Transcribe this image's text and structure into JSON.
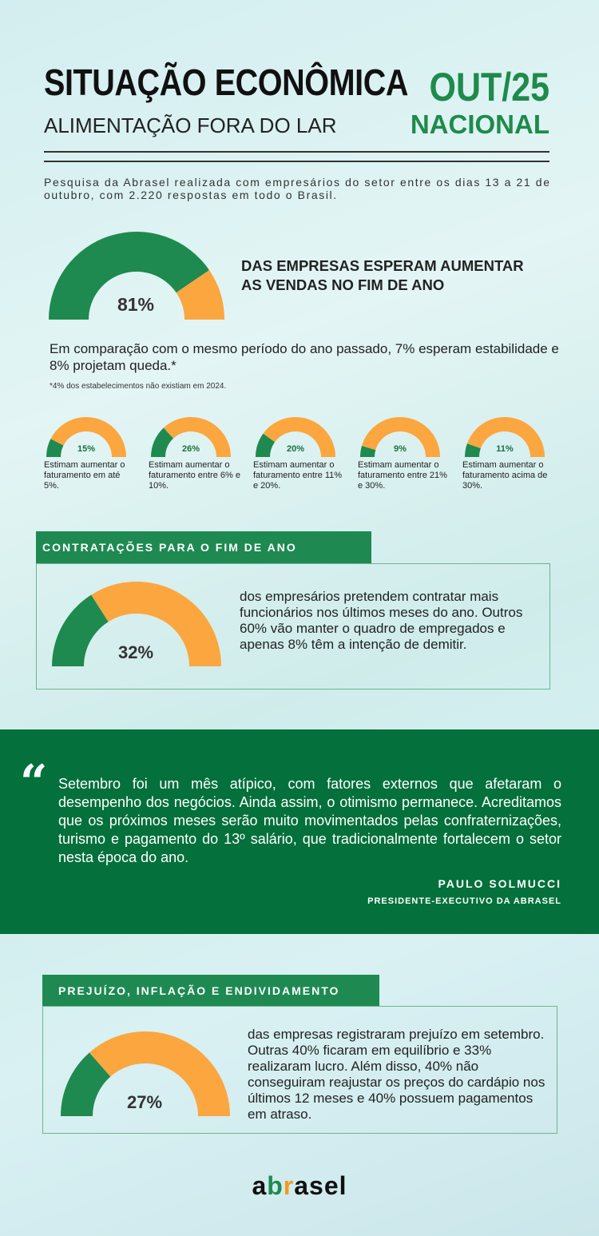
{
  "header": {
    "title": "SITUAÇÃO ECONÔMICA",
    "subtitle": "ALIMENTAÇÃO FORA DO LAR",
    "period": "OUT/25",
    "scope": "NACIONAL"
  },
  "intro": "Pesquisa da Abrasel realizada com empresários do setor entre os dias 13 a 21 de outubro, com 2.220 respostas em todo o Brasil.",
  "colors": {
    "green": "#1e8a4f",
    "orange": "#fba63f",
    "dark_green": "#04703b"
  },
  "sales": {
    "heading_line1": "DAS EMPRESAS ESPERAM AUMENTAR",
    "heading_line2": "AS VENDAS NO FIM DE ANO",
    "paragraph": "Em comparação com o mesmo período do ano passado, 7% esperam estabilidade e 8% projetam queda.*",
    "footnote": "*4% dos estabelecimentos não existiam em 2024."
  },
  "hiring": {
    "section_title": "CONTRATAÇÕES PARA O FIM DE ANO",
    "text": "dos empresários pretendem contratar mais funcionários nos últimos meses do ano. Outros 60% vão manter o quadro de empregados e apenas 8% têm a intenção de demitir."
  },
  "quote": {
    "mark": "“",
    "text": "Setembro foi um mês atípico, com fatores externos que afetaram o desempenho dos negócios. Ainda assim, o otimismo permanece. Acreditamos que os próximos meses serão muito movimentados pelas confraternizações, turismo e pagamento do 13º salário, que tradicionalmente fortalecem o setor nesta época do ano.",
    "author": "PAULO SOLMUCCI",
    "role": "PRESIDENTE-EXECUTIVO DA ABRASEL"
  },
  "loss": {
    "section_title": "PREJUÍZO, INFLAÇÃO E ENDIVIDAMENTO",
    "text": "das empresas registraram prejuízo em setembro. Outras 40% ficaram em equilíbrio e 33% realizaram lucro. Além disso, 40% não conseguiram reajustar os preços do cardápio nos últimos 12 meses e 40% possuem pagamentos em atraso."
  },
  "logo": {
    "text": "abrasel"
  },
  "chart_data": [
    {
      "type": "gauge",
      "id": "sales",
      "value": 81,
      "label": "81%"
    },
    {
      "type": "gauge",
      "id": "rev1",
      "value": 15,
      "label": "15%",
      "caption": "Estimam aumentar o faturamento em até 5%."
    },
    {
      "type": "gauge",
      "id": "rev2",
      "value": 26,
      "label": "26%",
      "caption": "Estimam aumentar o faturamento entre 6% e 10%."
    },
    {
      "type": "gauge",
      "id": "rev3",
      "value": 20,
      "label": "20%",
      "caption": "Estimam aumentar o faturamento entre 11% e 20%."
    },
    {
      "type": "gauge",
      "id": "rev4",
      "value": 9,
      "label": "9%",
      "caption": "Estimam aumentar o faturamento entre 21% e 30%."
    },
    {
      "type": "gauge",
      "id": "rev5",
      "value": 11,
      "label": "11%",
      "caption": "Estimam aumentar o faturamento acima de 30%."
    },
    {
      "type": "gauge",
      "id": "hiring",
      "value": 32,
      "label": "32%"
    },
    {
      "type": "gauge",
      "id": "loss",
      "value": 27,
      "label": "27%"
    }
  ]
}
